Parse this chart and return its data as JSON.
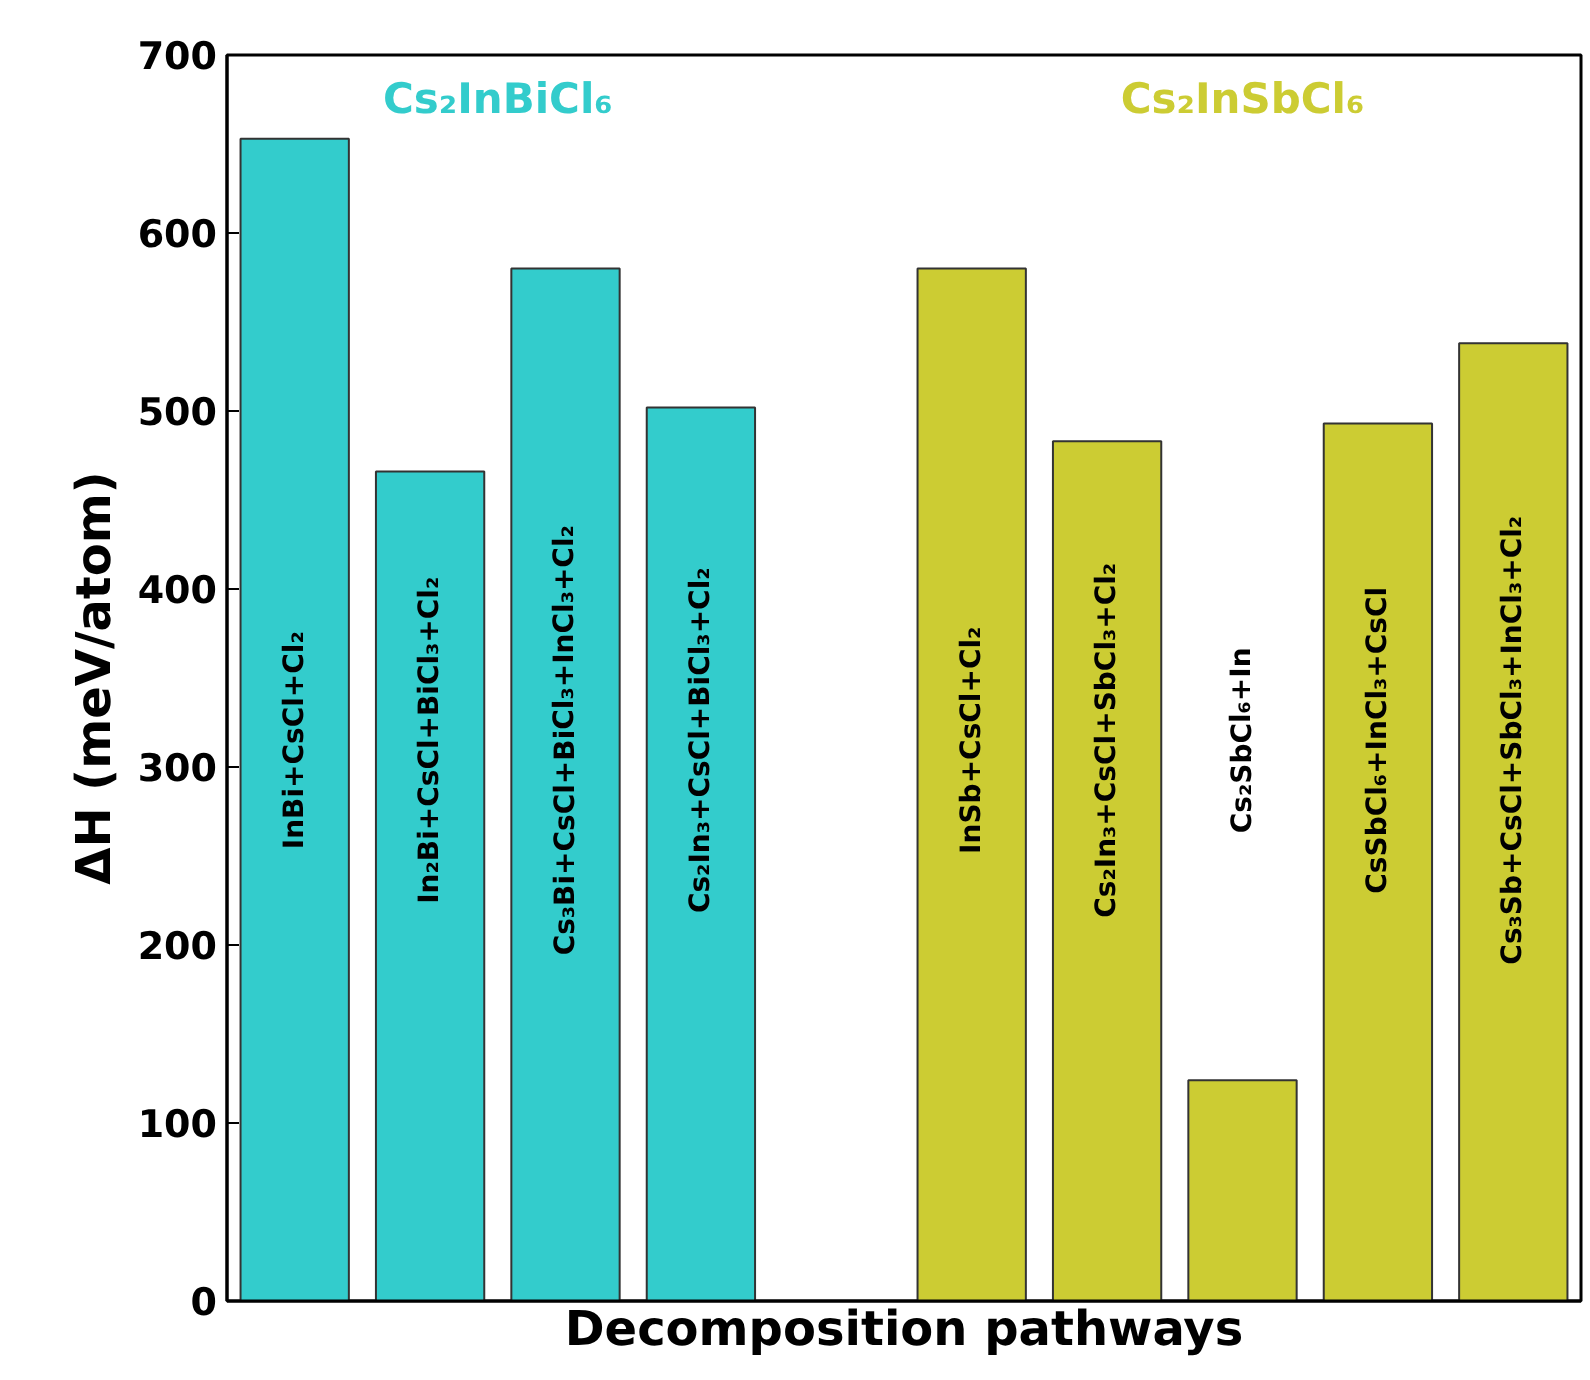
{
  "chart_data": {
    "type": "bar",
    "xlabel": "Decomposition pathways",
    "ylabel": "ΔH (meV/atom)",
    "categories": [
      "InBi+CsCl+Cl₂",
      "In₂Bi+CsCl+BiCl₃+Cl₂",
      "Cs₃Bi+CsCl+BiCl₃+InCl₃+Cl₂",
      "Cs₂In₃+CsCl+BiCl₃+Cl₂",
      null,
      "InSb+CsCl+Cl₂",
      "Cs₂In₃+CsCl+SbCl₃+Cl₂",
      "Cs₂SbCl₆+In",
      "CsSbCl₆+InCl₃+CsCl",
      "Cs₃Sb+CsCl+SbCl₃+InCl₃+Cl₂"
    ],
    "series": [
      {
        "name": "Cs₂InBiCl₆",
        "color": "#33cccc",
        "values": [
          653,
          466,
          580,
          502,
          null,
          null,
          null,
          null,
          null,
          null
        ]
      },
      {
        "name": "Cs₂InSbCl₆",
        "color": "#cccc33",
        "values": [
          null,
          null,
          null,
          null,
          null,
          580,
          483,
          124,
          493,
          538
        ]
      }
    ],
    "ylim": [
      0,
      700
    ],
    "yticks": [
      0,
      100,
      200,
      300,
      400,
      500,
      600,
      700
    ],
    "grid": false,
    "tick_labels": "y"
  }
}
